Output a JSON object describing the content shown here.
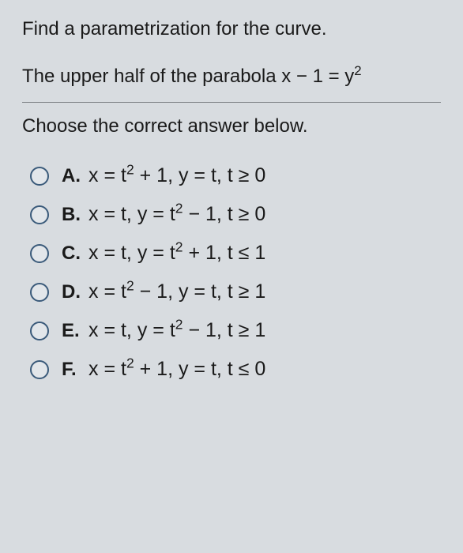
{
  "question": {
    "line1": "Find a parametrization for the curve.",
    "line2_prefix": "The upper half of the parabola x − 1 = y",
    "line2_exponent": "2"
  },
  "instruction": "Choose the correct answer below.",
  "options": [
    {
      "label": "A.",
      "prefix": "x = t",
      "exp1": "2",
      "mid": " + 1, y = t, t ≥ 0",
      "exp2": "",
      "suffix": ""
    },
    {
      "label": "B.",
      "prefix": "x = t, y = t",
      "exp1": "2",
      "mid": " − 1, t ≥ 0",
      "exp2": "",
      "suffix": ""
    },
    {
      "label": "C.",
      "prefix": "x = t, y = t",
      "exp1": "2",
      "mid": " + 1, t ≤ 1",
      "exp2": "",
      "suffix": ""
    },
    {
      "label": "D.",
      "prefix": "x = t",
      "exp1": "2",
      "mid": " − 1, y = t, t ≥ 1",
      "exp2": "",
      "suffix": ""
    },
    {
      "label": "E.",
      "prefix": "x = t, y = t",
      "exp1": "2",
      "mid": " − 1, t ≥ 1",
      "exp2": "",
      "suffix": ""
    },
    {
      "label": "F.",
      "prefix": "x = t",
      "exp1": "2",
      "mid": " + 1, y = t, t ≤ 0",
      "exp2": "",
      "suffix": ""
    }
  ],
  "colors": {
    "background": "#d8dce0",
    "text": "#1a1a1a",
    "divider": "#7a7e82",
    "radio_border": "#3a5a7a"
  },
  "typography": {
    "question_fontsize": 24,
    "option_fontsize": 25,
    "label_fontweight": "bold"
  }
}
